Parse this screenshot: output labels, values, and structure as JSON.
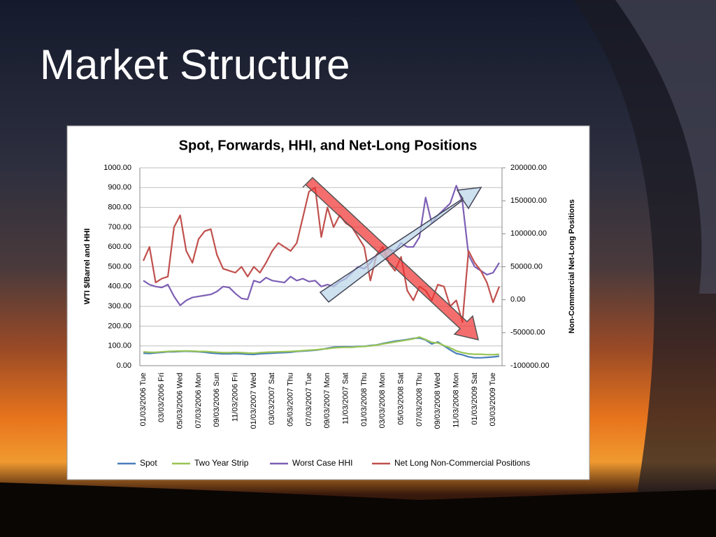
{
  "slide_title": "Market Structure",
  "chart_data": {
    "type": "line",
    "title": "Spot, Forwards, HHI, and Net-Long Positions",
    "y_label": "WTI $/Barrel and HHI",
    "y2_label": "Non-Commercial Net-Long Positions",
    "categories": [
      "01/03/2006 Tue",
      null,
      null,
      "03/03/2006 Fri",
      null,
      null,
      "05/03/2006 Wed",
      null,
      null,
      "07/03/2006 Mon",
      null,
      null,
      "09/03/2006 Sun",
      null,
      null,
      "11/03/2006 Fri",
      null,
      null,
      "01/03/2007 Wed",
      null,
      null,
      "03/03/2007 Sat",
      null,
      null,
      "05/03/2007 Thu",
      null,
      null,
      "07/03/2007 Tue",
      null,
      null,
      "09/03/2007 Mon",
      null,
      null,
      "11/03/2007 Sat",
      null,
      null,
      "01/03/2008 Thu",
      null,
      null,
      "03/03/2008 Mon",
      null,
      null,
      "05/03/2008 Sat",
      null,
      null,
      "07/03/2008 Thu",
      null,
      null,
      "09/03/2008 Wed",
      null,
      null,
      "11/03/2008 Mon",
      null,
      null,
      "01/03/2009 Sat",
      null,
      null,
      "03/03/2009 Tue",
      null
    ],
    "ylim": [
      0,
      1000
    ],
    "yticks": [
      {
        "value": 0,
        "label": "0.00"
      },
      {
        "value": 100,
        "label": "100.00"
      },
      {
        "value": 200,
        "label": "200.00"
      },
      {
        "value": 300,
        "label": "300.00"
      },
      {
        "value": 400,
        "label": "400.00"
      },
      {
        "value": 500,
        "label": "500.00"
      },
      {
        "value": 600,
        "label": "600.00"
      },
      {
        "value": 700,
        "label": "700.00"
      },
      {
        "value": 800,
        "label": "800.00"
      },
      {
        "value": 900,
        "label": "900.00"
      },
      {
        "value": 1000,
        "label": "1000.00"
      }
    ],
    "y2lim": [
      -100000,
      200000
    ],
    "y2ticks": [
      {
        "value": -100000,
        "label": "-100000.00"
      },
      {
        "value": -50000,
        "label": "-50000.00"
      },
      {
        "value": 0,
        "label": "0.00"
      },
      {
        "value": 50000,
        "label": "50000.00"
      },
      {
        "value": 100000,
        "label": "100000.00"
      },
      {
        "value": 150000,
        "label": "150000.00"
      },
      {
        "value": 200000,
        "label": "200000.00"
      }
    ],
    "grid": true,
    "legend": "bottom",
    "series": [
      {
        "name": "Spot",
        "color": "#4a7ebb",
        "values": [
          63,
          62,
          65,
          67,
          70,
          70,
          72,
          73,
          72,
          70,
          68,
          64,
          62,
          60,
          60,
          61,
          60,
          58,
          57,
          60,
          62,
          63,
          65,
          66,
          68,
          72,
          74,
          76,
          78,
          82,
          88,
          94,
          95,
          96,
          95,
          98,
          98,
          102,
          105,
          112,
          118,
          124,
          128,
          132,
          138,
          140,
          130,
          110,
          120,
          100,
          80,
          62,
          55,
          45,
          40,
          40,
          42,
          44,
          48
        ]
      },
      {
        "name": "Two Year Strip",
        "color": "#98c455",
        "values": [
          70,
          68,
          68,
          70,
          72,
          73,
          74,
          75,
          74,
          72,
          72,
          70,
          68,
          66,
          66,
          67,
          66,
          64,
          63,
          66,
          68,
          69,
          70,
          71,
          72,
          74,
          76,
          78,
          80,
          83,
          86,
          90,
          92,
          93,
          93,
          96,
          97,
          100,
          104,
          110,
          115,
          120,
          125,
          130,
          136,
          145,
          132,
          118,
          115,
          102,
          90,
          75,
          66,
          60,
          58,
          58,
          56,
          56,
          58
        ]
      },
      {
        "name": "Worst Case HHI",
        "color": "#7d5fb5",
        "values": [
          430,
          410,
          400,
          395,
          410,
          350,
          305,
          330,
          345,
          350,
          355,
          360,
          375,
          400,
          395,
          365,
          340,
          335,
          430,
          420,
          445,
          430,
          425,
          420,
          450,
          430,
          440,
          425,
          430,
          400,
          410,
          400,
          425,
          440,
          470,
          500,
          490,
          520,
          560,
          580,
          590,
          580,
          620,
          600,
          600,
          650,
          850,
          720,
          760,
          790,
          820,
          910,
          830,
          560,
          500,
          480,
          460,
          470,
          520
        ]
      },
      {
        "name": "Net Long Non-Commercial Positions",
        "color": "#c0504d",
        "axis": "y2",
        "values": [
          59000,
          80000,
          26000,
          32000,
          35000,
          110000,
          128000,
          74000,
          56000,
          92000,
          104000,
          107000,
          68000,
          47000,
          44000,
          41000,
          50000,
          35000,
          50000,
          41000,
          56000,
          74000,
          86000,
          80000,
          74000,
          86000,
          125000,
          164000,
          170000,
          95000,
          140000,
          110000,
          128000,
          116000,
          110000,
          95000,
          80000,
          29000,
          68000,
          80000,
          56000,
          44000,
          65000,
          14000,
          -1000,
          20000,
          14000,
          -1000,
          23000,
          20000,
          -10000,
          -1000,
          -34000,
          74000,
          56000,
          44000,
          26000,
          -4000,
          20000
        ]
      }
    ]
  }
}
